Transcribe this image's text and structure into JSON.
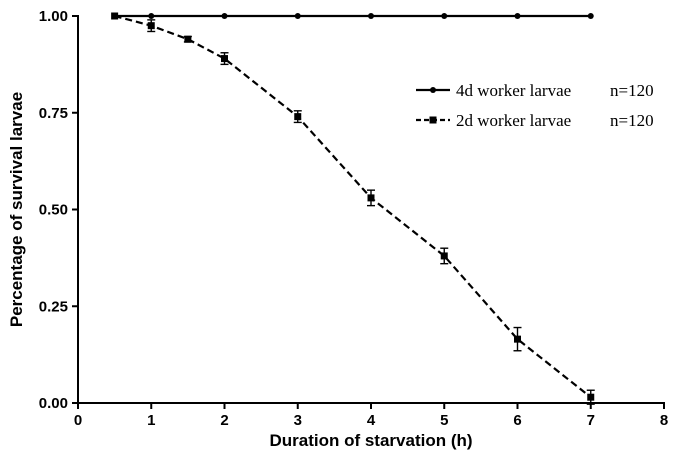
{
  "chart_data": {
    "type": "line",
    "xlabel": "Duration of starvation (h)",
    "ylabel": "Percentage of survival larvae",
    "xlim": [
      0,
      8
    ],
    "ylim": [
      0,
      1
    ],
    "x_ticks": [
      0,
      1,
      2,
      3,
      4,
      5,
      6,
      7,
      8
    ],
    "x_tick_labels": [
      "0",
      "1",
      "2",
      "3",
      "4",
      "5",
      "6",
      "7",
      "8"
    ],
    "y_ticks": [
      0,
      0.25,
      0.5,
      0.75,
      1.0
    ],
    "y_tick_labels": [
      "0.00",
      "0.25",
      "0.50",
      "0.75",
      "1.00"
    ],
    "grid": false,
    "legend_position": "right",
    "series": [
      {
        "name": "4d worker larvae",
        "n_label": "n=120",
        "style": "solid",
        "marker": "circle",
        "color": "#000000",
        "x": [
          0.5,
          1,
          2,
          3,
          4,
          5,
          6,
          7
        ],
        "y": [
          1.0,
          1.0,
          1.0,
          1.0,
          1.0,
          1.0,
          1.0,
          1.0
        ],
        "error": [
          0,
          0,
          0,
          0,
          0,
          0,
          0,
          0
        ]
      },
      {
        "name": "2d worker larvae",
        "n_label": "n=120",
        "style": "dashed",
        "marker": "square",
        "color": "#000000",
        "x": [
          0.5,
          1,
          1.5,
          2,
          3,
          4,
          5,
          6,
          7
        ],
        "y": [
          1.0,
          0.975,
          0.94,
          0.89,
          0.74,
          0.53,
          0.38,
          0.165,
          0.015
        ],
        "error": [
          0,
          0.015,
          0.007,
          0.015,
          0.015,
          0.02,
          0.02,
          0.03,
          0.018
        ]
      }
    ]
  }
}
